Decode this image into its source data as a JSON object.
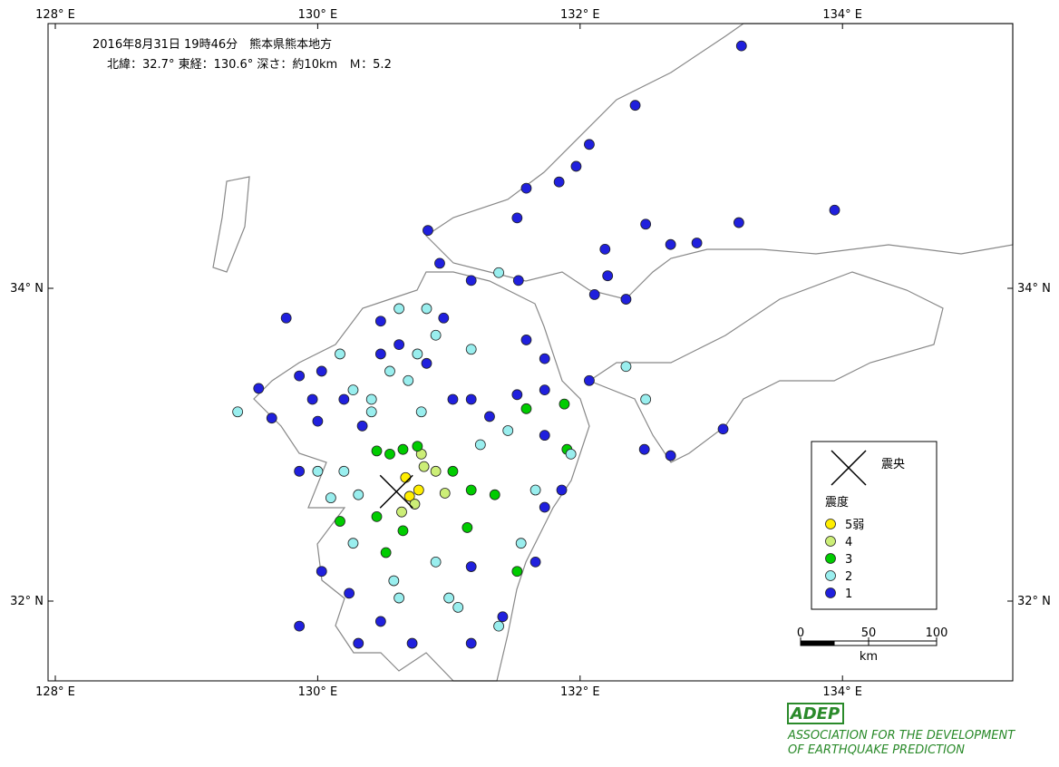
{
  "header": {
    "line1": "2016年8月31日 19時46分　熊本県熊本地方",
    "line2": "北緯：32.7° 東経：130.6° 深さ：約10km　Ｍ：5.2"
  },
  "axes": {
    "x_ticks": [
      {
        "value": 128,
        "label": "128° E"
      },
      {
        "value": 130,
        "label": "130° E"
      },
      {
        "value": 132,
        "label": "132° E"
      },
      {
        "value": 134,
        "label": "134° E"
      }
    ],
    "y_ticks": [
      {
        "value": 34,
        "label": "34° N"
      },
      {
        "value": 32,
        "label": "32° N"
      }
    ]
  },
  "epicenter": {
    "lon": 130.6,
    "lat": 32.7
  },
  "legend": {
    "epicenter_label": "震央",
    "intensity_title": "震度",
    "classes": [
      {
        "label": "1",
        "color": "#2020dd"
      },
      {
        "label": "2",
        "color": "#99eeee"
      },
      {
        "label": "3",
        "color": "#00cc00"
      },
      {
        "label": "4",
        "color": "#ccee77"
      },
      {
        "label": "5弱",
        "color": "#ffee00"
      }
    ]
  },
  "scale": {
    "ticks": [
      0,
      50,
      100
    ],
    "unit": "km"
  },
  "stations": [
    {
      "lon": 130.67,
      "lat": 32.79,
      "class": 4
    },
    {
      "lon": 130.7,
      "lat": 32.67,
      "class": 4
    },
    {
      "lon": 130.77,
      "lat": 32.71,
      "class": 4
    },
    {
      "lon": 130.81,
      "lat": 32.86,
      "class": 3
    },
    {
      "lon": 130.9,
      "lat": 32.83,
      "class": 3
    },
    {
      "lon": 130.74,
      "lat": 32.62,
      "class": 3
    },
    {
      "lon": 130.64,
      "lat": 32.57,
      "class": 3
    },
    {
      "lon": 130.97,
      "lat": 32.69,
      "class": 3
    },
    {
      "lon": 130.79,
      "lat": 32.94,
      "class": 3
    },
    {
      "lon": 130.45,
      "lat": 32.96,
      "class": 2
    },
    {
      "lon": 130.55,
      "lat": 32.94,
      "class": 2
    },
    {
      "lon": 130.65,
      "lat": 32.97,
      "class": 2
    },
    {
      "lon": 130.76,
      "lat": 32.99,
      "class": 2
    },
    {
      "lon": 131.03,
      "lat": 32.83,
      "class": 2
    },
    {
      "lon": 131.17,
      "lat": 32.71,
      "class": 2
    },
    {
      "lon": 131.35,
      "lat": 32.68,
      "class": 2
    },
    {
      "lon": 131.59,
      "lat": 33.23,
      "class": 2
    },
    {
      "lon": 131.88,
      "lat": 33.26,
      "class": 2
    },
    {
      "lon": 131.9,
      "lat": 32.97,
      "class": 2
    },
    {
      "lon": 130.45,
      "lat": 32.54,
      "class": 2
    },
    {
      "lon": 130.52,
      "lat": 32.31,
      "class": 2
    },
    {
      "lon": 130.65,
      "lat": 32.45,
      "class": 2
    },
    {
      "lon": 130.17,
      "lat": 32.51,
      "class": 2
    },
    {
      "lon": 131.14,
      "lat": 32.47,
      "class": 2
    },
    {
      "lon": 131.52,
      "lat": 32.19,
      "class": 2
    },
    {
      "lon": 129.39,
      "lat": 33.21,
      "class": 1
    },
    {
      "lon": 130.17,
      "lat": 33.58,
      "class": 1
    },
    {
      "lon": 130.27,
      "lat": 33.35,
      "class": 1
    },
    {
      "lon": 130.41,
      "lat": 33.29,
      "class": 1
    },
    {
      "lon": 130.55,
      "lat": 33.47,
      "class": 1
    },
    {
      "lon": 130.69,
      "lat": 33.41,
      "class": 1
    },
    {
      "lon": 130.62,
      "lat": 33.87,
      "class": 1
    },
    {
      "lon": 130.83,
      "lat": 33.87,
      "class": 1
    },
    {
      "lon": 130.9,
      "lat": 33.7,
      "class": 1
    },
    {
      "lon": 130.2,
      "lat": 32.83,
      "class": 1
    },
    {
      "lon": 130.31,
      "lat": 32.68,
      "class": 1
    },
    {
      "lon": 130.1,
      "lat": 32.66,
      "class": 1
    },
    {
      "lon": 130.27,
      "lat": 32.37,
      "class": 1
    },
    {
      "lon": 130.58,
      "lat": 32.13,
      "class": 1
    },
    {
      "lon": 130.9,
      "lat": 32.25,
      "class": 1
    },
    {
      "lon": 131.0,
      "lat": 32.02,
      "class": 1
    },
    {
      "lon": 131.38,
      "lat": 31.84,
      "class": 1
    },
    {
      "lon": 131.55,
      "lat": 32.37,
      "class": 1
    },
    {
      "lon": 131.66,
      "lat": 32.71,
      "class": 1
    },
    {
      "lon": 131.93,
      "lat": 32.94,
      "class": 1
    },
    {
      "lon": 131.45,
      "lat": 33.09,
      "class": 1
    },
    {
      "lon": 131.24,
      "lat": 33.0,
      "class": 1
    },
    {
      "lon": 131.38,
      "lat": 34.1,
      "class": 1
    },
    {
      "lon": 132.35,
      "lat": 33.5,
      "class": 1
    },
    {
      "lon": 132.5,
      "lat": 33.29,
      "class": 1
    },
    {
      "lon": 130.62,
      "lat": 32.02,
      "class": 1
    },
    {
      "lon": 131.07,
      "lat": 31.96,
      "class": 1
    },
    {
      "lon": 130.79,
      "lat": 33.21,
      "class": 1
    },
    {
      "lon": 130.0,
      "lat": 32.83,
      "class": 1
    },
    {
      "lon": 130.76,
      "lat": 33.58,
      "class": 1
    },
    {
      "lon": 131.17,
      "lat": 33.61,
      "class": 1
    },
    {
      "lon": 130.41,
      "lat": 33.21,
      "class": 1
    },
    {
      "lon": 133.23,
      "lat": 35.55,
      "class": 0
    },
    {
      "lon": 132.42,
      "lat": 35.17,
      "class": 0
    },
    {
      "lon": 132.07,
      "lat": 34.92,
      "class": 0
    },
    {
      "lon": 131.97,
      "lat": 34.78,
      "class": 0
    },
    {
      "lon": 131.84,
      "lat": 34.68,
      "class": 0
    },
    {
      "lon": 131.59,
      "lat": 34.64,
      "class": 0
    },
    {
      "lon": 131.52,
      "lat": 34.45,
      "class": 0
    },
    {
      "lon": 132.5,
      "lat": 34.41,
      "class": 0
    },
    {
      "lon": 133.21,
      "lat": 34.42,
      "class": 0
    },
    {
      "lon": 132.89,
      "lat": 34.29,
      "class": 0
    },
    {
      "lon": 132.69,
      "lat": 34.28,
      "class": 0
    },
    {
      "lon": 132.19,
      "lat": 34.25,
      "class": 0
    },
    {
      "lon": 132.21,
      "lat": 34.08,
      "class": 0
    },
    {
      "lon": 132.35,
      "lat": 33.93,
      "class": 0
    },
    {
      "lon": 132.11,
      "lat": 33.96,
      "class": 0
    },
    {
      "lon": 133.94,
      "lat": 34.5,
      "class": 0
    },
    {
      "lon": 133.09,
      "lat": 33.1,
      "class": 0
    },
    {
      "lon": 132.69,
      "lat": 32.93,
      "class": 0
    },
    {
      "lon": 132.49,
      "lat": 32.97,
      "class": 0
    },
    {
      "lon": 130.84,
      "lat": 34.37,
      "class": 0
    },
    {
      "lon": 130.93,
      "lat": 34.16,
      "class": 0
    },
    {
      "lon": 131.17,
      "lat": 34.05,
      "class": 0
    },
    {
      "lon": 131.53,
      "lat": 34.05,
      "class": 0
    },
    {
      "lon": 129.76,
      "lat": 33.81,
      "class": 0
    },
    {
      "lon": 129.55,
      "lat": 33.36,
      "class": 0
    },
    {
      "lon": 129.65,
      "lat": 33.17,
      "class": 0
    },
    {
      "lon": 129.86,
      "lat": 33.44,
      "class": 0
    },
    {
      "lon": 130.03,
      "lat": 33.47,
      "class": 0
    },
    {
      "lon": 130.48,
      "lat": 33.58,
      "class": 0
    },
    {
      "lon": 130.96,
      "lat": 33.81,
      "class": 0
    },
    {
      "lon": 130.83,
      "lat": 33.52,
      "class": 0
    },
    {
      "lon": 131.59,
      "lat": 33.67,
      "class": 0
    },
    {
      "lon": 131.73,
      "lat": 33.55,
      "class": 0
    },
    {
      "lon": 131.52,
      "lat": 33.32,
      "class": 0
    },
    {
      "lon": 131.17,
      "lat": 33.29,
      "class": 0
    },
    {
      "lon": 131.31,
      "lat": 33.18,
      "class": 0
    },
    {
      "lon": 131.73,
      "lat": 33.06,
      "class": 0
    },
    {
      "lon": 131.86,
      "lat": 32.71,
      "class": 0
    },
    {
      "lon": 131.73,
      "lat": 32.6,
      "class": 0
    },
    {
      "lon": 131.66,
      "lat": 32.25,
      "class": 0
    },
    {
      "lon": 131.17,
      "lat": 32.22,
      "class": 0
    },
    {
      "lon": 130.24,
      "lat": 32.05,
      "class": 0
    },
    {
      "lon": 130.48,
      "lat": 31.87,
      "class": 0
    },
    {
      "lon": 130.31,
      "lat": 31.73,
      "class": 0
    },
    {
      "lon": 130.72,
      "lat": 31.73,
      "class": 0
    },
    {
      "lon": 131.17,
      "lat": 31.73,
      "class": 0
    },
    {
      "lon": 131.41,
      "lat": 31.9,
      "class": 0
    },
    {
      "lon": 129.86,
      "lat": 31.84,
      "class": 0
    },
    {
      "lon": 130.03,
      "lat": 32.19,
      "class": 0
    },
    {
      "lon": 130.0,
      "lat": 33.15,
      "class": 0
    },
    {
      "lon": 130.34,
      "lat": 33.12,
      "class": 0
    },
    {
      "lon": 132.07,
      "lat": 33.41,
      "class": 0
    },
    {
      "lon": 129.86,
      "lat": 32.83,
      "class": 0
    },
    {
      "lon": 131.03,
      "lat": 33.29,
      "class": 0
    },
    {
      "lon": 130.2,
      "lat": 33.29,
      "class": 0
    },
    {
      "lon": 129.96,
      "lat": 33.29,
      "class": 0
    },
    {
      "lon": 130.62,
      "lat": 33.64,
      "class": 0
    },
    {
      "lon": 130.48,
      "lat": 33.79,
      "class": 0
    },
    {
      "lon": 131.73,
      "lat": 33.35,
      "class": 0
    }
  ],
  "logo": {
    "mark": "ADEP",
    "line1": "ASSOCIATION FOR THE DEVELOPMENT",
    "line2": "OF EARTHQUAKE PREDICTION"
  }
}
